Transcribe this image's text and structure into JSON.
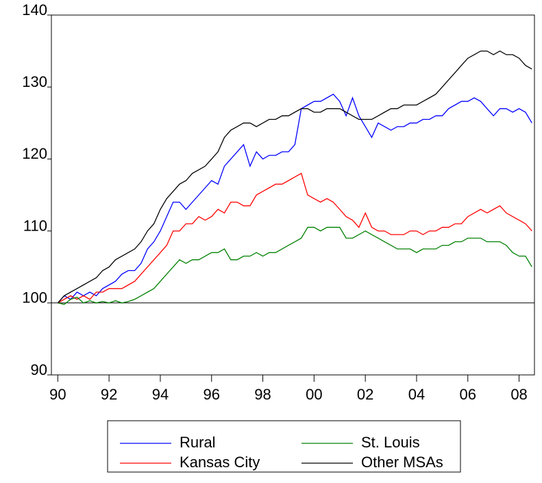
{
  "chart_data": {
    "type": "line",
    "x": [
      1990,
      1990.25,
      1990.5,
      1990.75,
      1991,
      1991.25,
      1991.5,
      1991.75,
      1992,
      1992.25,
      1992.5,
      1992.75,
      1993,
      1993.25,
      1993.5,
      1993.75,
      1994,
      1994.25,
      1994.5,
      1994.75,
      1995,
      1995.25,
      1995.5,
      1995.75,
      1996,
      1996.25,
      1996.5,
      1996.75,
      1997,
      1997.25,
      1997.5,
      1997.75,
      1998,
      1998.25,
      1998.5,
      1998.75,
      1999,
      1999.25,
      1999.5,
      1999.75,
      2000,
      2000.25,
      2000.5,
      2000.75,
      2001,
      2001.25,
      2001.5,
      2001.75,
      2002,
      2002.25,
      2002.5,
      2002.75,
      2003,
      2003.25,
      2003.5,
      2003.75,
      2004,
      2004.25,
      2004.5,
      2004.75,
      2005,
      2005.25,
      2005.5,
      2005.75,
      2006,
      2006.25,
      2006.5,
      2006.75,
      2007,
      2007.25,
      2007.5,
      2007.75,
      2008,
      2008.25,
      2008.5
    ],
    "series": [
      {
        "name": "Rural",
        "color": "#0000ff",
        "values": [
          100,
          101,
          100.5,
          101.5,
          101,
          101.5,
          101,
          102,
          102.5,
          103,
          104,
          104.5,
          104.5,
          105.5,
          107.5,
          108.5,
          110,
          112,
          114,
          114,
          113,
          114,
          115,
          116,
          117,
          116.5,
          119,
          120,
          121,
          122,
          119,
          121,
          120,
          120.5,
          120.5,
          121,
          121,
          122,
          127,
          127.5,
          128,
          128,
          128.5,
          129,
          128,
          126,
          128.5,
          126,
          124.5,
          123,
          125,
          124.5,
          124,
          124.5,
          124.5,
          125,
          125,
          125.5,
          125.5,
          126,
          126,
          127,
          127.5,
          128,
          128,
          128.5,
          128,
          127,
          126,
          127,
          127,
          126.5,
          127,
          126.5,
          125
        ]
      },
      {
        "name": "Kansas City",
        "color": "#ff0000",
        "values": [
          100,
          100.5,
          101,
          100.5,
          101,
          100.5,
          101.5,
          101.5,
          102,
          102,
          102,
          102.5,
          103,
          104,
          105,
          106,
          107,
          108,
          110,
          110,
          111,
          111,
          112,
          111.5,
          112,
          113,
          112.5,
          114,
          114,
          113.5,
          113.5,
          115,
          115.5,
          116,
          116.5,
          116.5,
          117,
          117.5,
          118,
          115,
          114.5,
          114,
          114.5,
          114,
          113,
          112,
          111.5,
          110.5,
          112.5,
          110.5,
          110,
          110,
          109.5,
          109.5,
          109.5,
          110,
          110,
          109.5,
          110,
          110,
          110.5,
          110.5,
          111,
          111,
          112,
          112.5,
          113,
          112.5,
          113,
          113.5,
          112.5,
          112,
          111.5,
          111,
          110
        ]
      },
      {
        "name": "St. Louis",
        "color": "#008000",
        "values": [
          100,
          99.8,
          100.5,
          100.8,
          100,
          100.3,
          100,
          100.2,
          100,
          100.3,
          100,
          100.2,
          100.5,
          101,
          101.5,
          102,
          103,
          104,
          105,
          106,
          105.5,
          106,
          106,
          106.5,
          107,
          107,
          107.5,
          106,
          106,
          106.5,
          106.5,
          107,
          106.5,
          107,
          107,
          107.5,
          108,
          108.5,
          109,
          110.5,
          110.5,
          110,
          110.5,
          110.5,
          110.5,
          109,
          109,
          109.5,
          110,
          109.5,
          109,
          108.5,
          108,
          107.5,
          107.5,
          107.5,
          107,
          107.5,
          107.5,
          107.5,
          108,
          108,
          108.5,
          108.5,
          109,
          109,
          109,
          108.5,
          108.5,
          108.5,
          108,
          107,
          106.5,
          106.5,
          105
        ]
      },
      {
        "name": "Other MSAs",
        "color": "#000000",
        "values": [
          100,
          101,
          101.5,
          102,
          102.5,
          103,
          103.5,
          104.5,
          105,
          106,
          106.5,
          107,
          107.5,
          108.5,
          110,
          111,
          113,
          114.5,
          115.5,
          116.5,
          117,
          118,
          118.5,
          119,
          120,
          121,
          123,
          124,
          124.5,
          125,
          125,
          124.5,
          125,
          125.5,
          125.5,
          126,
          126,
          126.5,
          127,
          127,
          126.5,
          126.5,
          127,
          127,
          127,
          126.5,
          126,
          125.5,
          125.5,
          125.5,
          126,
          126.5,
          127,
          127,
          127.5,
          127.5,
          127.5,
          128,
          128.5,
          129,
          130,
          131,
          132,
          133,
          134,
          134.5,
          135,
          135,
          134.5,
          135,
          134.5,
          134.5,
          134,
          133,
          132.5
        ]
      }
    ],
    "reference_line": 100,
    "xlim": [
      1989.75,
      2008.6
    ],
    "xticks": [
      {
        "value": 1990,
        "label": "90"
      },
      {
        "value": 1992,
        "label": "92"
      },
      {
        "value": 1994,
        "label": "94"
      },
      {
        "value": 1996,
        "label": "96"
      },
      {
        "value": 1998,
        "label": "98"
      },
      {
        "value": 2000,
        "label": "00"
      },
      {
        "value": 2002,
        "label": "02"
      },
      {
        "value": 2004,
        "label": "04"
      },
      {
        "value": 2006,
        "label": "06"
      },
      {
        "value": 2008,
        "label": "08"
      }
    ],
    "ylim": [
      90,
      140
    ],
    "yticks": [
      90,
      100,
      110,
      120,
      130,
      140
    ],
    "legend": "bottom"
  }
}
